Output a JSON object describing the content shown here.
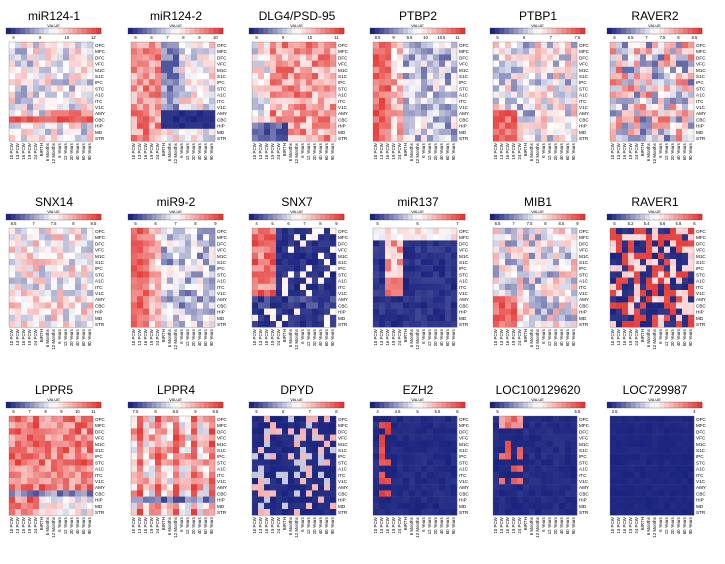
{
  "figure": {
    "value_label": "VALUE",
    "regions": [
      "OFC",
      "MFC",
      "DFC",
      "VFC",
      "M1C",
      "S1C",
      "IPC",
      "STC",
      "A1C",
      "ITC",
      "V1C",
      "AMY",
      "CBC",
      "HIP",
      "MD",
      "STR"
    ],
    "ages": [
      "10 PCW",
      "13 PCW",
      "16 PCW",
      "19 PCW",
      "24 PCW",
      "BIRTH",
      "6 Months",
      "12 Months",
      "6 Years",
      "12 Years",
      "20 Years",
      "40 Years",
      "60 Years",
      "90 Years"
    ],
    "colors": {
      "low": "#1a237e",
      "mid": "#ffffff",
      "high": "#e53935"
    }
  },
  "chart_data": [
    {
      "type": "heatmap",
      "title": "miR124-1",
      "ticks": [
        "6",
        "8",
        "10",
        "12"
      ],
      "range": [
        4,
        13
      ],
      "pattern": "cbc_high",
      "seed": 1
    },
    {
      "type": "heatmap",
      "title": "miR124-2",
      "ticks": [
        "5",
        "6",
        "7",
        "8",
        "9",
        "10"
      ],
      "range": [
        4,
        11
      ],
      "pattern": "early_high_lowblock",
      "seed": 2
    },
    {
      "type": "heatmap",
      "title": "DLG4/PSD-95",
      "ticks": [
        "8",
        "9",
        "10",
        "11"
      ],
      "range": [
        7,
        12
      ],
      "pattern": "late_high",
      "seed": 3
    },
    {
      "type": "heatmap",
      "title": "PTBP2",
      "ticks": [
        "8.5",
        "9",
        "9.5",
        "10",
        "10.5",
        "11"
      ],
      "range": [
        8,
        11.5
      ],
      "pattern": "early_high",
      "seed": 4
    },
    {
      "type": "heatmap",
      "title": "PTBP1",
      "ticks": [
        "5",
        "6",
        "7",
        "7.5"
      ],
      "range": [
        4,
        8
      ],
      "pattern": "mixed_early",
      "seed": 5
    },
    {
      "type": "heatmap",
      "title": "RAVER2",
      "ticks": [
        "6",
        "6.5",
        "7",
        "7.5",
        "8",
        "8.5"
      ],
      "range": [
        5.5,
        9
      ],
      "pattern": "random",
      "seed": 6
    },
    {
      "type": "heatmap",
      "title": "SNX14",
      "ticks": [
        "6.5",
        "7",
        "7.5",
        "8",
        "8.5"
      ],
      "range": [
        6,
        9
      ],
      "pattern": "random_soft",
      "seed": 7
    },
    {
      "type": "heatmap",
      "title": "miR9-2",
      "ticks": [
        "5",
        "6",
        "7",
        "8",
        "9"
      ],
      "range": [
        4,
        10
      ],
      "pattern": "early_high",
      "seed": 8
    },
    {
      "type": "heatmap",
      "title": "SNX7",
      "ticks": [
        "4",
        "5",
        "6",
        "7",
        "8",
        "9"
      ],
      "range": [
        3,
        10
      ],
      "pattern": "early_high_dark",
      "seed": 9
    },
    {
      "type": "heatmap",
      "title": "miR137",
      "ticks": [
        "5",
        "6",
        "7"
      ],
      "range": [
        4,
        8
      ],
      "pattern": "dark_early_spots",
      "seed": 10
    },
    {
      "type": "heatmap",
      "title": "MIB1",
      "ticks": [
        "6.5",
        "7",
        "7.5",
        "8",
        "8.5",
        "9"
      ],
      "range": [
        6,
        9.5
      ],
      "pattern": "mixed_early",
      "seed": 11
    },
    {
      "type": "heatmap",
      "title": "RAVER1",
      "ticks": [
        "5",
        "5.2",
        "5.4",
        "5.6",
        "5.8",
        "6"
      ],
      "range": [
        4.8,
        6.2
      ],
      "pattern": "random_strong",
      "seed": 12
    },
    {
      "type": "heatmap",
      "title": "LPPR5",
      "ticks": [
        "6",
        "7",
        "8",
        "9",
        "10",
        "11"
      ],
      "range": [
        5,
        12
      ],
      "pattern": "red_mostly",
      "seed": 13
    },
    {
      "type": "heatmap",
      "title": "LPPR4",
      "ticks": [
        "7.5",
        "8",
        "8.5",
        "9",
        "9.5"
      ],
      "range": [
        7,
        10
      ],
      "pattern": "red_columns",
      "seed": 14
    },
    {
      "type": "heatmap",
      "title": "DPYD",
      "ticks": [
        "5",
        "6",
        "7",
        "8"
      ],
      "range": [
        4,
        9
      ],
      "pattern": "dark_scatter",
      "seed": 15
    },
    {
      "type": "heatmap",
      "title": "EZH2",
      "ticks": [
        "4",
        "4.5",
        "5",
        "5.5",
        "6"
      ],
      "range": [
        3.5,
        6.5
      ],
      "pattern": "dark_early_red",
      "seed": 16
    },
    {
      "type": "heatmap",
      "title": "LOC100129620",
      "ticks": [
        "5",
        "5.5"
      ],
      "range": [
        4.5,
        6
      ],
      "pattern": "dark_topleft",
      "seed": 17
    },
    {
      "type": "heatmap",
      "title": "LOC729987",
      "ticks": [
        "3.5",
        "4"
      ],
      "range": [
        3,
        4.5
      ],
      "pattern": "all_dark",
      "seed": 18
    }
  ]
}
